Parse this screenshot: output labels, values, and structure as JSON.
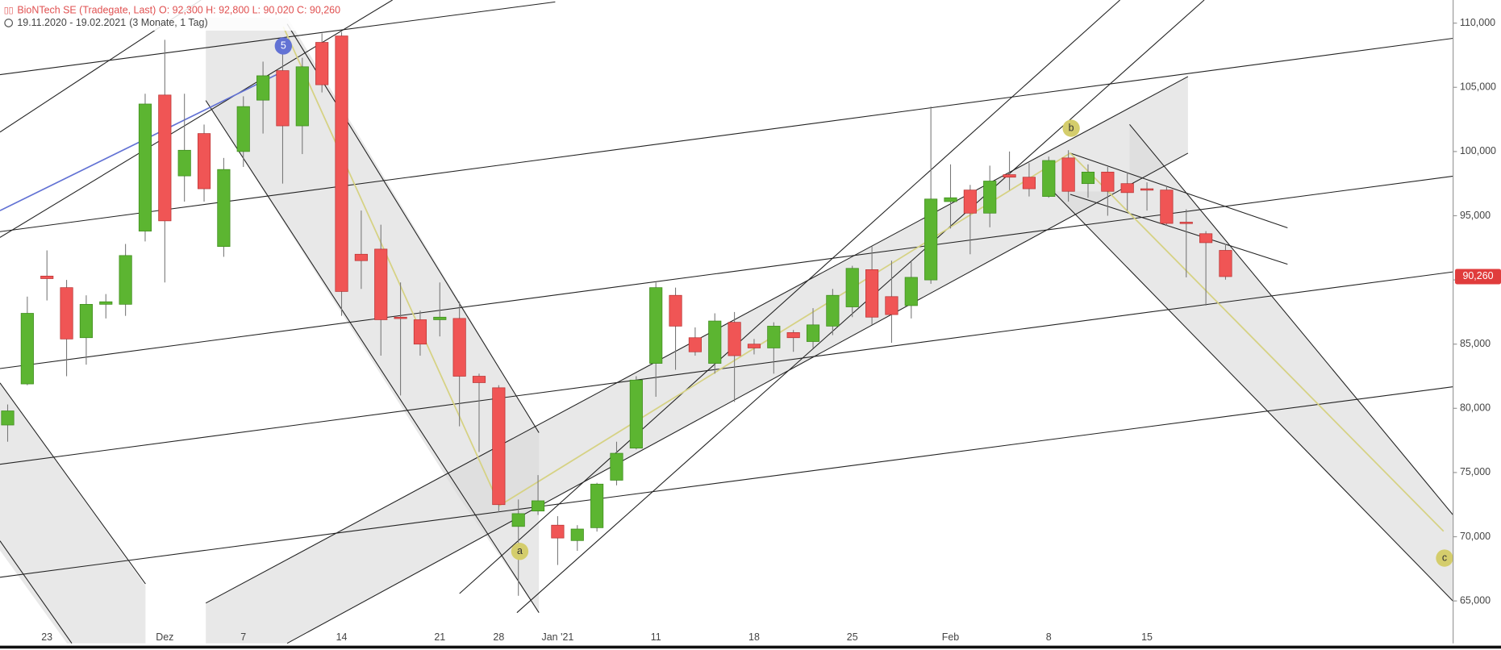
{
  "chart_data": {
    "type": "candlestick",
    "title": "BioNTech SE (Tradegate, Last)",
    "quote": "O: 92,300  H: 92,800  L: 90,020  C: 90,260",
    "date_range": "19.11.2020 - 19.02.2021",
    "period": "(3 Monate, 1 Tag)",
    "categories": [
      null,
      null,
      "23",
      null,
      null,
      null,
      null,
      null,
      "Dez",
      null,
      null,
      null,
      "7",
      null,
      null,
      null,
      null,
      "14",
      null,
      null,
      null,
      null,
      "21",
      null,
      null,
      "28",
      null,
      null,
      "Jan '21",
      null,
      null,
      null,
      null,
      "11",
      null,
      null,
      null,
      null,
      "18",
      null,
      null,
      null,
      null,
      "25",
      null,
      null,
      null,
      null,
      "Feb",
      null,
      null,
      null,
      null,
      "8",
      null,
      null,
      null,
      null,
      "15",
      null,
      null,
      null,
      null
    ],
    "open": [
      78700,
      81900,
      90300,
      89400,
      85500,
      88100,
      88100,
      93800,
      104400,
      98100,
      101400,
      92600,
      100000,
      104000,
      106300,
      102000,
      108500,
      109000,
      92000,
      92400,
      87100,
      86900,
      86900,
      87000,
      82500,
      81600,
      70800,
      72000,
      70900,
      69700,
      70700,
      74400,
      76900,
      83500,
      88800,
      85500,
      83500,
      86700,
      85000,
      84700,
      85900,
      85200,
      86400,
      87900,
      90800,
      88700,
      88000,
      90000,
      96100,
      97000,
      95200,
      98200,
      98000,
      96500,
      99500,
      97500,
      98400,
      97500,
      97100,
      97000,
      94500,
      93600,
      92300
    ],
    "high": [
      80300,
      88700,
      92300,
      90000,
      88800,
      88900,
      92800,
      104500,
      108700,
      104500,
      102100,
      99500,
      104300,
      107000,
      108200,
      107300,
      109200,
      109300,
      95400,
      94300,
      89800,
      87600,
      89800,
      88300,
      82700,
      81800,
      72900,
      74800,
      71600,
      70900,
      74200,
      77400,
      82500,
      89800,
      89400,
      86300,
      87400,
      87500,
      85400,
      86700,
      86100,
      87800,
      89300,
      91100,
      92600,
      91500,
      91400,
      103500,
      99000,
      97400,
      98900,
      100000,
      99100,
      99600,
      100100,
      99000,
      98800,
      98400,
      97600,
      97300,
      95500,
      93800,
      92800
    ],
    "low": [
      77400,
      81800,
      88400,
      82500,
      83400,
      87000,
      87200,
      93000,
      89800,
      96100,
      96100,
      91800,
      98800,
      101400,
      97500,
      99800,
      104600,
      87200,
      89300,
      84100,
      81000,
      84100,
      85600,
      78600,
      76600,
      71900,
      65400,
      71700,
      67800,
      68900,
      70400,
      74000,
      76800,
      80900,
      83000,
      84100,
      82700,
      80500,
      84200,
      82700,
      84400,
      84700,
      85700,
      87100,
      86500,
      85100,
      87000,
      89700,
      94000,
      92000,
      94100,
      97000,
      96500,
      96400,
      96100,
      96400,
      95000,
      95400,
      95400,
      94200,
      90200,
      88000,
      90020
    ],
    "close": [
      79800,
      87400,
      90100,
      85400,
      88100,
      88300,
      91900,
      103700,
      94600,
      100100,
      97100,
      98600,
      103500,
      105900,
      102000,
      106600,
      105200,
      89100,
      91500,
      86900,
      87000,
      85000,
      87100,
      82500,
      82000,
      72500,
      71800,
      72800,
      69900,
      70600,
      74100,
      76500,
      82200,
      89400,
      86400,
      84400,
      86800,
      84100,
      84700,
      86400,
      85500,
      86500,
      88800,
      90900,
      87100,
      87300,
      90200,
      96300,
      96400,
      95200,
      97700,
      98000,
      97100,
      99300,
      96900,
      98400,
      96900,
      96800,
      97000,
      94400,
      94400,
      92900,
      90260
    ],
    "up_color": "#5cb531",
    "down_color": "#f05555",
    "ylim": [
      61700,
      111800
    ],
    "yticks": [
      {
        "value": 65000,
        "label": "65,000"
      },
      {
        "value": 70000,
        "label": "70,000"
      },
      {
        "value": 75000,
        "label": "75,000"
      },
      {
        "value": 80000,
        "label": "80,000"
      },
      {
        "value": 85000,
        "label": "85,000"
      },
      {
        "value": 90000,
        "label": "90,000"
      },
      {
        "value": 95000,
        "label": "95,000"
      },
      {
        "value": 100000,
        "label": "100,000"
      },
      {
        "value": 105000,
        "label": "105,000"
      },
      {
        "value": 110000,
        "label": "110,000"
      }
    ],
    "grid": false,
    "last_price": {
      "value": 90260,
      "label": "90,260"
    },
    "annotations": [
      "5",
      "a",
      "b",
      "c"
    ]
  }
}
